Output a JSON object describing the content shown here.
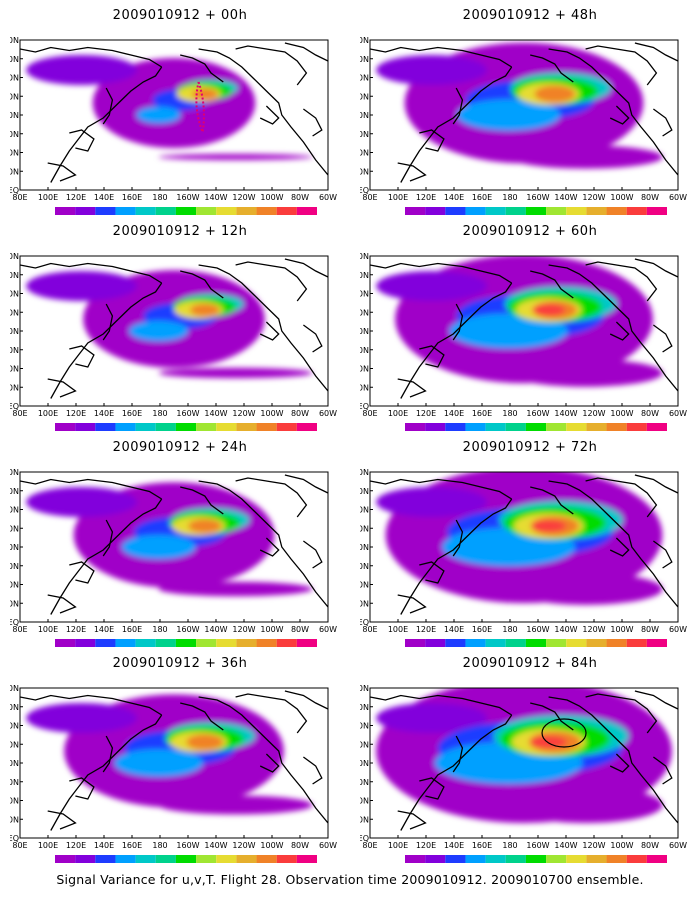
{
  "chart_data": {
    "type": "heatmap",
    "caption": "Signal Variance for u,v,T. Flight 28. Observation time 2009010912. 2009010700 ensemble.",
    "x_ticks": [
      "80E",
      "100E",
      "120E",
      "140E",
      "160E",
      "180",
      "160W",
      "140W",
      "120W",
      "100W",
      "80W",
      "60W"
    ],
    "y_ticks": [
      "80N",
      "70N",
      "60N",
      "50N",
      "40N",
      "30N",
      "20N",
      "10N",
      "EQ"
    ],
    "y_ticks_shown": [
      "0N",
      "70N",
      "60N",
      "50N",
      "40N",
      "30N",
      "20N",
      "0N",
      "EQ"
    ],
    "colorbar_levels": [
      "1.8",
      "2.2",
      "3.1",
      "4",
      "5.1",
      "6.3",
      "7.5",
      "9",
      "11",
      "14",
      "21",
      "29",
      "40"
    ],
    "colorbar_levels_84h": [
      "1.6",
      "2.2",
      "3.1",
      "4",
      "5.1",
      "6.3",
      "7.5",
      "9",
      "11",
      "14",
      "21",
      "29",
      "40"
    ],
    "colors": [
      "#a000c8",
      "#8200dc",
      "#1e3cff",
      "#00a0ff",
      "#00c8c8",
      "#00d28c",
      "#00dc00",
      "#a0e632",
      "#e6dc32",
      "#e6af2d",
      "#f08228",
      "#fa3c3c",
      "#f00082"
    ],
    "panels": [
      {
        "title": "2009010912 + 00h",
        "lead_hours": 0
      },
      {
        "title": "2009010912 + 48h",
        "lead_hours": 48
      },
      {
        "title": "2009010912 + 12h",
        "lead_hours": 12
      },
      {
        "title": "2009010912 + 60h",
        "lead_hours": 60
      },
      {
        "title": "2009010912 + 24h",
        "lead_hours": 24
      },
      {
        "title": "2009010912 + 72h",
        "lead_hours": 72
      },
      {
        "title": "2009010912 + 36h",
        "lead_hours": 36
      },
      {
        "title": "2009010912 + 84h",
        "lead_hours": 84
      }
    ]
  }
}
